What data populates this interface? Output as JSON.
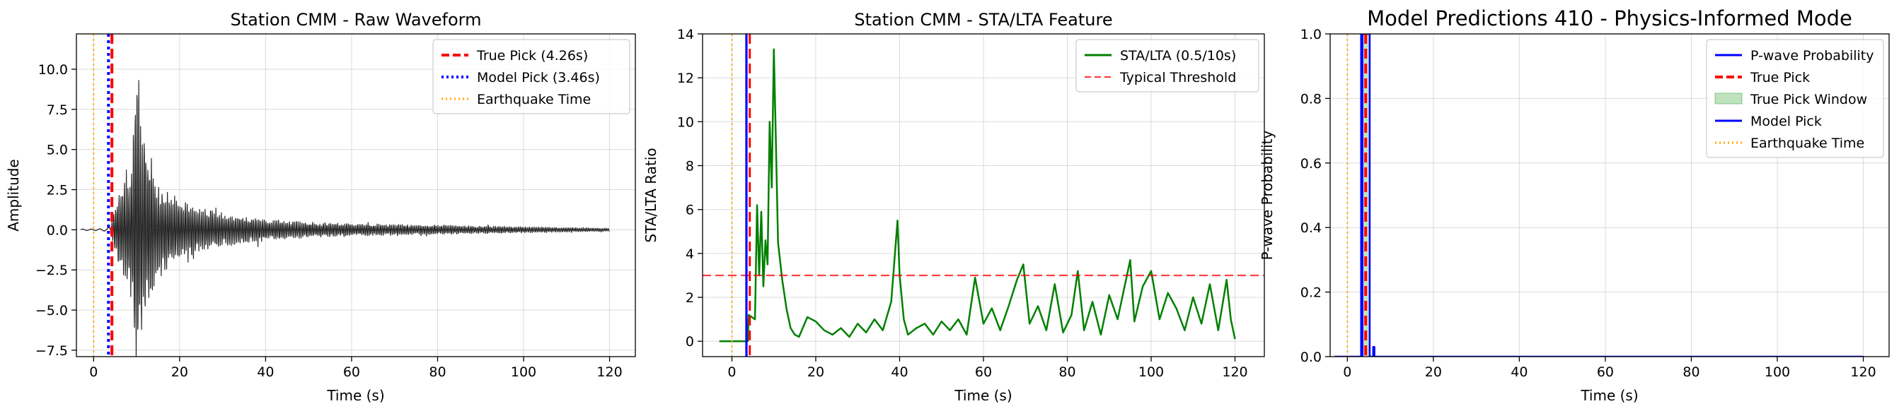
{
  "chart_data": [
    {
      "type": "line",
      "title": "Station CMM - Raw Waveform",
      "xlabel": "Time (s)",
      "ylabel": "Amplitude",
      "xlim": [
        -4,
        126
      ],
      "ylim": [
        -7.9,
        12.2
      ],
      "xticks": [
        0,
        20,
        40,
        60,
        80,
        100,
        120
      ],
      "xtick_labels": [
        "0",
        "20",
        "40",
        "60",
        "80",
        "100",
        "120"
      ],
      "yticks": [
        -7.5,
        -5.0,
        -2.5,
        0.0,
        2.5,
        5.0,
        7.5,
        10.0
      ],
      "ytick_labels": [
        "−7.5",
        "−5.0",
        "−2.5",
        "0.0",
        "2.5",
        "5.0",
        "7.5",
        "10.0"
      ],
      "grid": true,
      "legend_position": "top-right",
      "series": [
        {
          "name": "Raw waveform",
          "color": "#000000",
          "style": "solid",
          "x": [
            -3,
            0,
            3,
            4,
            5,
            6,
            7,
            8,
            9,
            10,
            11,
            12,
            13,
            14,
            15,
            16,
            18,
            20,
            22,
            25,
            28,
            30,
            35,
            40,
            45,
            50,
            60,
            70,
            80,
            90,
            100,
            110,
            120
          ],
          "envelope": [
            0.05,
            0.05,
            0.1,
            0.3,
            1.5,
            2.5,
            3.0,
            3.2,
            5.0,
            11.2,
            7.0,
            6.0,
            5.5,
            4.0,
            3.2,
            2.8,
            2.3,
            2.0,
            1.7,
            1.4,
            1.2,
            1.0,
            0.9,
            0.7,
            0.6,
            0.5,
            0.4,
            0.35,
            0.3,
            0.25,
            0.2,
            0.15,
            0.1
          ]
        }
      ],
      "vlines": [
        {
          "name": "True Pick (4.26s)",
          "x": 4.26,
          "color": "#ff0000",
          "style": "dashed"
        },
        {
          "name": "Model Pick (3.46s)",
          "x": 3.46,
          "color": "#0000ff",
          "style": "dotted"
        },
        {
          "name": "Earthquake Time",
          "x": 0,
          "color": "#ffa500",
          "style": "dotted"
        }
      ]
    },
    {
      "type": "line",
      "title": "Station CMM - STA/LTA Feature",
      "xlabel": "Time (s)",
      "ylabel": "STA/LTA Ratio",
      "xlim": [
        -7,
        127
      ],
      "ylim": [
        -0.7,
        14
      ],
      "xticks": [
        0,
        20,
        40,
        60,
        80,
        100,
        120
      ],
      "xtick_labels": [
        "0",
        "20",
        "40",
        "60",
        "80",
        "100",
        "120"
      ],
      "yticks": [
        0,
        2,
        4,
        6,
        8,
        10,
        12,
        14
      ],
      "ytick_labels": [
        "0",
        "2",
        "4",
        "6",
        "8",
        "10",
        "12",
        "14"
      ],
      "grid": true,
      "legend_position": "top-right",
      "series": [
        {
          "name": "STA/LTA (0.5/10s)",
          "color": "#008000",
          "style": "solid",
          "x": [
            -3,
            3.8,
            4.0,
            5.5,
            6.0,
            6.5,
            7.0,
            7.5,
            8.0,
            8.5,
            9.0,
            9.5,
            10.0,
            10.5,
            11.0,
            12.0,
            13.0,
            14.0,
            15.0,
            16.0,
            18.0,
            20.0,
            22.0,
            24.0,
            26.0,
            28.0,
            30.0,
            32.0,
            34.0,
            36.0,
            38.0,
            39.5,
            40.0,
            41.0,
            42.0,
            44.0,
            46.0,
            48.0,
            50.0,
            52.0,
            54.0,
            56.0,
            58.0,
            60.0,
            62.0,
            64.0,
            66.0,
            68.0,
            69.5,
            71.0,
            73.0,
            75.0,
            77.0,
            79.0,
            81.0,
            82.5,
            84.0,
            86.0,
            88.0,
            90.0,
            92.0,
            94.0,
            95.0,
            96.0,
            98.0,
            100.0,
            102.0,
            104.0,
            106.0,
            108.0,
            110.0,
            112.0,
            114.0,
            116.0,
            118.0,
            119.0,
            120.0
          ],
          "y": [
            0,
            0,
            1.2,
            1.0,
            6.2,
            3.0,
            5.9,
            2.5,
            4.6,
            3.5,
            10.0,
            7.0,
            13.3,
            9.0,
            4.5,
            2.8,
            1.5,
            0.6,
            0.3,
            0.2,
            1.1,
            0.9,
            0.5,
            0.3,
            0.6,
            0.2,
            0.8,
            0.4,
            1.0,
            0.5,
            1.8,
            5.5,
            3.0,
            1.0,
            0.3,
            0.6,
            0.8,
            0.3,
            0.9,
            0.5,
            1.0,
            0.3,
            2.9,
            0.8,
            1.5,
            0.5,
            1.6,
            2.8,
            3.5,
            0.8,
            1.6,
            0.5,
            2.6,
            0.4,
            1.2,
            3.2,
            0.5,
            1.8,
            0.3,
            2.1,
            1.0,
            2.8,
            3.7,
            0.9,
            2.5,
            3.2,
            1.0,
            2.2,
            1.5,
            0.5,
            2.0,
            0.8,
            2.6,
            0.5,
            2.8,
            1.0,
            0.1
          ]
        },
        {
          "name": "Typical Threshold",
          "color": "#ff0000",
          "style": "dashed",
          "hline": 3.0
        }
      ],
      "vlines": [
        {
          "name": "True Pick",
          "x": 4.26,
          "color": "#ff0000",
          "style": "dashed"
        },
        {
          "name": "Model Pick",
          "x": 3.46,
          "color": "#0000ff",
          "style": "solid"
        },
        {
          "name": "Earthquake Time",
          "x": 0,
          "color": "#ffa500",
          "style": "dotted"
        }
      ]
    },
    {
      "type": "line",
      "title": "Model Predictions 410 - Physics-Informed Mode",
      "xlabel": "Time (s)",
      "ylabel": "P-wave Probability",
      "xlim": [
        -4,
        126
      ],
      "ylim": [
        0,
        1.0
      ],
      "xticks": [
        0,
        20,
        40,
        60,
        80,
        100,
        120
      ],
      "xtick_labels": [
        "0",
        "20",
        "40",
        "60",
        "80",
        "100",
        "120"
      ],
      "yticks": [
        0.0,
        0.2,
        0.4,
        0.6,
        0.8,
        1.0
      ],
      "ytick_labels": [
        "0.0",
        "0.2",
        "0.4",
        "0.6",
        "0.8",
        "1.0"
      ],
      "grid": true,
      "legend_position": "top-right",
      "series": [
        {
          "name": "P-wave Probability",
          "color": "#0000ff",
          "style": "solid",
          "x": [
            -3,
            3.0,
            3.2,
            3.2,
            5.2,
            5.2,
            5.5,
            6.0,
            6.0,
            6.3,
            6.3,
            120
          ],
          "y": [
            0,
            0,
            0,
            1.0,
            1.0,
            0,
            0,
            0,
            0.03,
            0.03,
            0,
            0
          ]
        }
      ],
      "spans": [
        {
          "name": "True Pick Window",
          "x0": 3.26,
          "x1": 5.26,
          "color": "#2ca02c",
          "alpha": 0.3
        }
      ],
      "vlines": [
        {
          "name": "True Pick",
          "x": 4.26,
          "color": "#ff0000",
          "style": "dashed"
        },
        {
          "name": "Model Pick",
          "x": 3.46,
          "color": "#0000ff",
          "style": "solid"
        },
        {
          "name": "Earthquake Time",
          "x": 0,
          "color": "#ffa500",
          "style": "dotted"
        }
      ],
      "legend_entries": [
        "P-wave Probability",
        "True Pick",
        "True Pick Window",
        "Model Pick",
        "Earthquake Time"
      ]
    }
  ]
}
